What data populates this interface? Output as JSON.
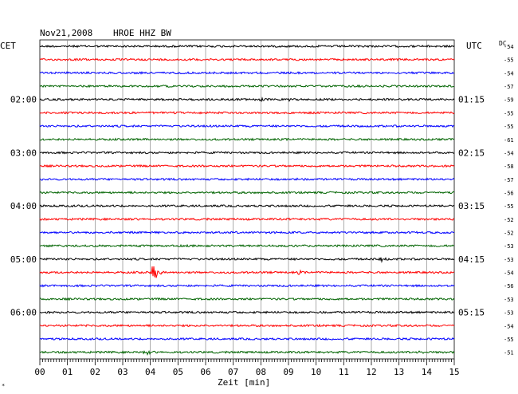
{
  "header": {
    "date": "Nov21,2008",
    "station": "HROE HHZ BW",
    "left_zone": "CET",
    "right_zone": "UTC",
    "dc_label": "DC"
  },
  "footer": {
    "xlabel": "Zeit [min]",
    "corner_mark": "*"
  },
  "colors": {
    "trace_cycle": [
      "#000000",
      "#ff0000",
      "#0000ff",
      "#006400"
    ],
    "grid": "#000000",
    "background": "#ffffff"
  },
  "chart_data": {
    "type": "line",
    "title": "Nov21,2008 HROE HHZ BW",
    "xlabel": "Zeit [min]",
    "xlim": [
      0,
      15
    ],
    "x_ticks": [
      "00",
      "01",
      "02",
      "03",
      "04",
      "05",
      "06",
      "07",
      "08",
      "09",
      "10",
      "11",
      "12",
      "13",
      "14",
      "15"
    ],
    "left_time_labels": [
      {
        "row": 4,
        "text": "02:00"
      },
      {
        "row": 8,
        "text": "03:00"
      },
      {
        "row": 12,
        "text": "04:00"
      },
      {
        "row": 16,
        "text": "05:00"
      },
      {
        "row": 20,
        "text": "06:00"
      }
    ],
    "right_time_labels": [
      {
        "row": 4,
        "text": "01:15"
      },
      {
        "row": 8,
        "text": "02:15"
      },
      {
        "row": 12,
        "text": "03:15"
      },
      {
        "row": 16,
        "text": "04:15"
      },
      {
        "row": 20,
        "text": "05:15"
      }
    ],
    "dc_values": [
      54,
      55,
      54,
      57,
      59,
      55,
      55,
      61,
      54,
      58,
      57,
      56,
      55,
      52,
      52,
      53,
      53,
      54,
      56,
      53,
      53,
      54,
      55,
      51
    ],
    "trace_count": 24,
    "events": [
      {
        "row": 4,
        "minute": 8.0,
        "amplitude": 0.5
      },
      {
        "row": 4,
        "minute": 9.1,
        "amplitude": 0.3
      },
      {
        "row": 10,
        "minute": 9.3,
        "amplitude": 0.4
      },
      {
        "row": 16,
        "minute": 12.4,
        "amplitude": 0.5
      },
      {
        "row": 17,
        "minute": 4.15,
        "amplitude": 3.0
      },
      {
        "row": 17,
        "minute": 9.4,
        "amplitude": 0.4
      },
      {
        "row": 23,
        "minute": 3.9,
        "amplitude": 0.4
      },
      {
        "row": 23,
        "minute": 13.7,
        "amplitude": 0.3
      }
    ]
  }
}
